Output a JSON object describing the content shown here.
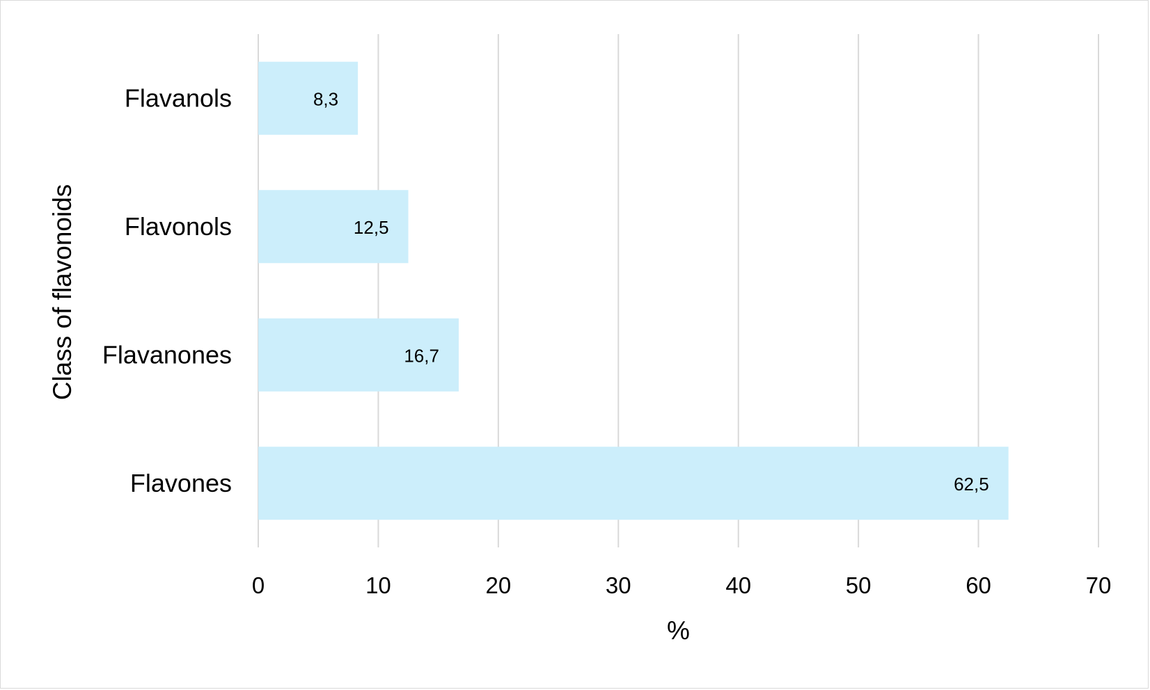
{
  "chart_data": {
    "type": "bar",
    "orientation": "horizontal",
    "categories": [
      "Flavanols",
      "Flavonols",
      "Flavanones",
      "Flavones"
    ],
    "values": [
      8.3,
      12.5,
      16.7,
      62.5
    ],
    "data_labels": [
      "8,3",
      "12,5",
      "16,7",
      "62,5"
    ],
    "xlabel": "%",
    "ylabel": "Class of flavonoids",
    "xlim": [
      0,
      70
    ],
    "x_ticks": [
      0,
      10,
      20,
      30,
      40,
      50,
      60,
      70
    ],
    "grid": true,
    "legend": "none",
    "colors": {
      "bar": "#cceefb",
      "grid": "#d9d9d9",
      "text": "#000000"
    }
  }
}
